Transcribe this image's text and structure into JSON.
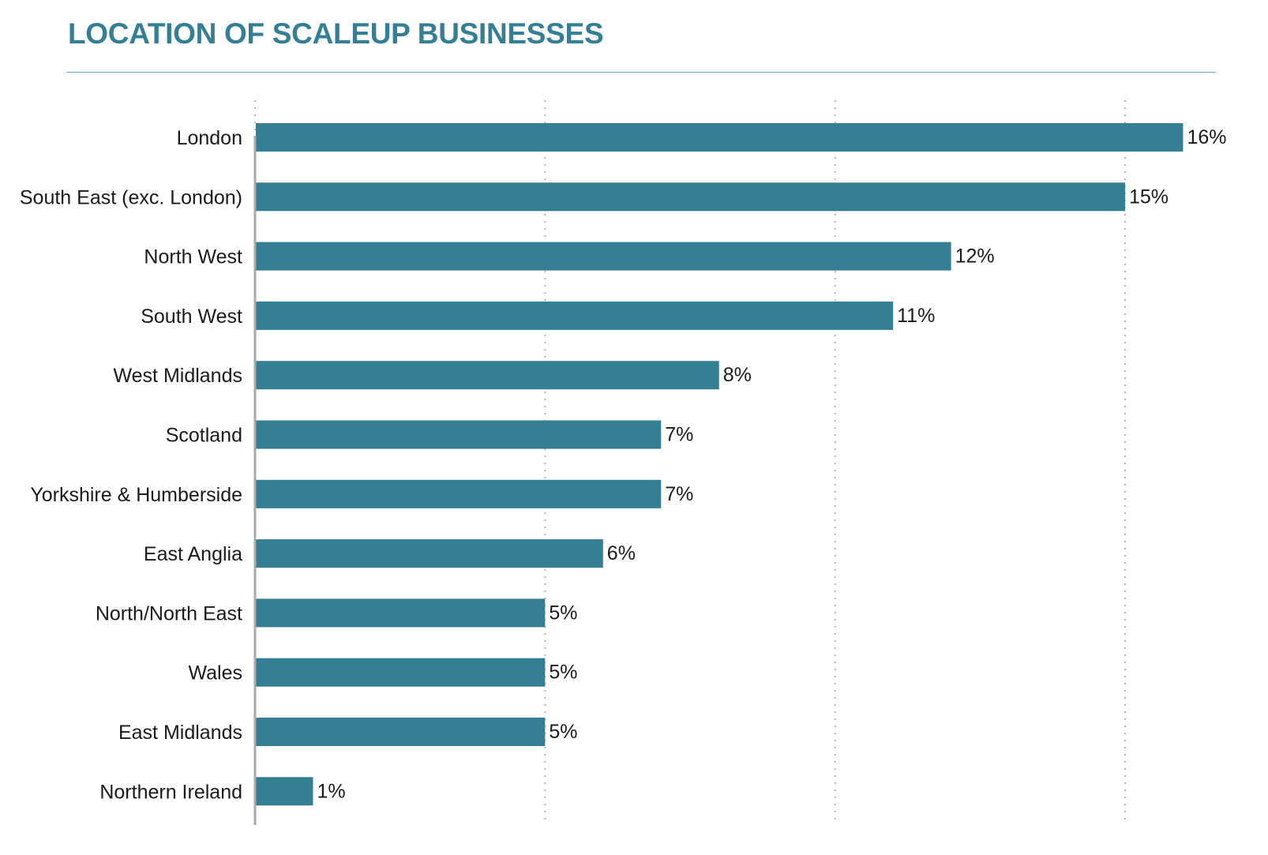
{
  "chart_data": {
    "type": "bar",
    "orientation": "horizontal",
    "title": "LOCATION OF SCALEUP BUSINESSES",
    "categories": [
      "London",
      "South East (exc. London)",
      "North West",
      "South West",
      "West Midlands",
      "Scotland",
      "Yorkshire & Humberside",
      "East Anglia",
      "North/North East",
      "Wales",
      "East Midlands",
      "Northern Ireland"
    ],
    "values": [
      16,
      15,
      12,
      11,
      8,
      7,
      7,
      6,
      5,
      5,
      5,
      1
    ],
    "value_labels": [
      "16%",
      "15%",
      "12%",
      "11%",
      "8%",
      "7%",
      "7%",
      "6%",
      "5%",
      "5%",
      "5%",
      "1%"
    ],
    "unit": "%",
    "xlim": [
      0,
      15
    ],
    "grid": true,
    "grid_style": "dotted vertical",
    "legend": "none",
    "colors": {
      "bar": "#357f94",
      "title": "#357f94",
      "title_rule": "#6fa7b8",
      "axis": "#aaaaaa",
      "grid": "#b5b5b5",
      "text": "#1a1a1a"
    }
  }
}
